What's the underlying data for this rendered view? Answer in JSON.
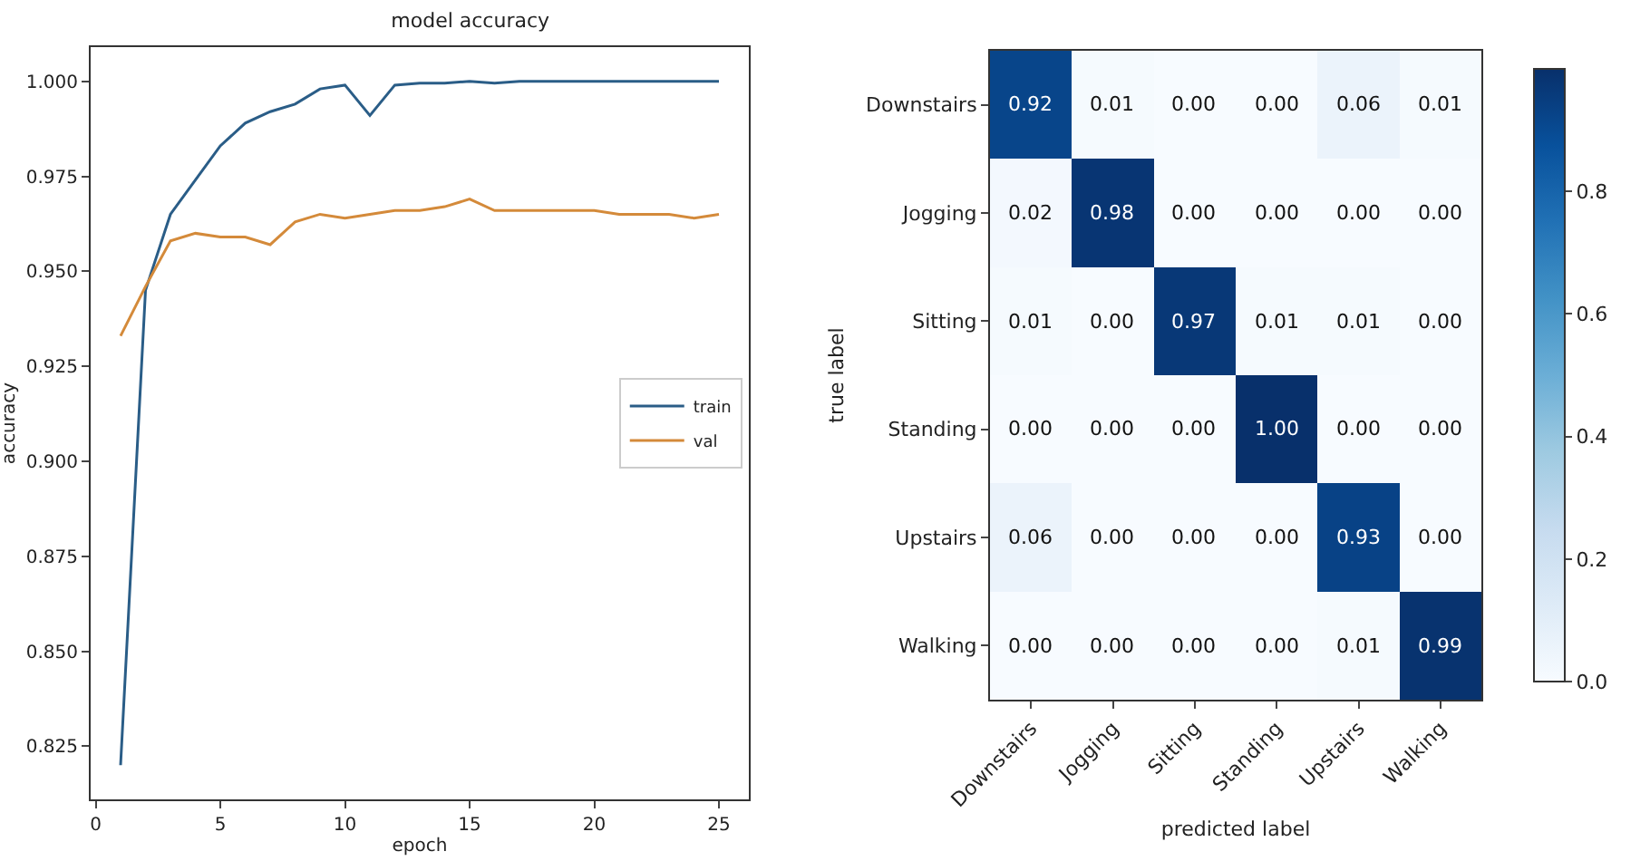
{
  "chart_data": [
    {
      "type": "line",
      "title": "model accuracy",
      "xlabel": "epoch",
      "ylabel": "accuracy",
      "x": [
        1,
        2,
        3,
        4,
        5,
        6,
        7,
        8,
        9,
        10,
        11,
        12,
        13,
        14,
        15,
        16,
        17,
        18,
        19,
        20,
        21,
        22,
        23,
        24,
        25
      ],
      "series": [
        {
          "name": "train",
          "color": "#2a5d87",
          "values": [
            0.82,
            0.945,
            0.965,
            0.974,
            0.983,
            0.989,
            0.992,
            0.994,
            0.998,
            0.999,
            0.991,
            0.999,
            0.9995,
            0.9995,
            1.0,
            0.9995,
            1.0,
            1.0,
            1.0,
            1.0,
            1.0,
            1.0,
            1.0,
            1.0,
            1.0
          ]
        },
        {
          "name": "val",
          "color": "#d48a3a",
          "values": [
            0.933,
            0.946,
            0.958,
            0.96,
            0.959,
            0.959,
            0.957,
            0.963,
            0.965,
            0.964,
            0.965,
            0.966,
            0.966,
            0.967,
            0.969,
            0.966,
            0.966,
            0.966,
            0.966,
            0.966,
            0.965,
            0.965,
            0.965,
            0.964,
            0.965
          ]
        }
      ],
      "xlim": [
        -0.2,
        26.2
      ],
      "xticks": [
        0,
        5,
        10,
        15,
        20,
        25
      ],
      "ylim": [
        0.811,
        1.009
      ],
      "yticks": [
        0.825,
        {
          "value": 0.85,
          "label": "0.850"
        },
        0.875,
        {
          "value": 0.9,
          "label": "0.900"
        },
        0.925,
        {
          "value": 0.95,
          "label": "0.950"
        },
        0.975,
        {
          "value": 1,
          "label": "1.000"
        }
      ],
      "grid": false,
      "legend": "right",
      "marker": "none",
      "line_style": "solid"
    },
    {
      "type": "heatmap",
      "xlabel": "predicted label",
      "ylabel": "true label",
      "categories": [
        "Downstairs",
        "Jogging",
        "Sitting",
        "Standing",
        "Upstairs",
        "Walking"
      ],
      "y_categories": [
        "Downstairs",
        "Jogging",
        "Sitting",
        "Standing",
        "Upstairs",
        "Walking"
      ],
      "cells": [
        [
          0.92,
          0.01,
          0.0,
          0.0,
          0.06,
          0.01
        ],
        [
          0.02,
          0.98,
          0.0,
          0.0,
          0.0,
          0.0
        ],
        [
          0.01,
          0.0,
          0.97,
          0.01,
          0.01,
          0.0
        ],
        [
          0.0,
          0.0,
          0.0,
          1.0,
          0.0,
          0.0
        ],
        [
          0.06,
          0.0,
          0.0,
          0.0,
          0.93,
          0.0
        ],
        [
          0.0,
          0.0,
          0.0,
          0.0,
          0.01,
          0.99
        ]
      ],
      "cell_labels": [
        [
          "0.92",
          "0.01",
          "0.00",
          "0.00",
          "0.06",
          "0.01"
        ],
        [
          "0.02",
          "0.98",
          "0.00",
          "0.00",
          "0.00",
          "0.00"
        ],
        [
          "0.01",
          "0.00",
          "0.97",
          "0.01",
          "0.01",
          "0.00"
        ],
        [
          "0.00",
          "0.00",
          "0.00",
          "1.00",
          "0.00",
          "0.00"
        ],
        [
          "0.06",
          "0.00",
          "0.00",
          "0.00",
          "0.93",
          "0.00"
        ],
        [
          "0.00",
          "0.00",
          "0.00",
          "0.00",
          "0.01",
          "0.99"
        ]
      ],
      "clim": [
        0,
        1
      ],
      "cticks": [
        {
          "value": 0,
          "label": "0.0"
        },
        0.2,
        0.4,
        0.6,
        0.8
      ]
    }
  ]
}
